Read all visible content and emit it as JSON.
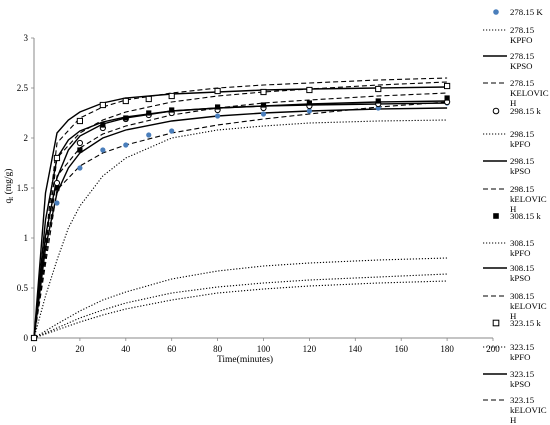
{
  "chart_data": {
    "type": "scatter",
    "xlabel": "Time(minutes)",
    "ylabel": "q",
    "ylabel_sub": "t",
    "ylabel_unit": " (mg/g)",
    "xlim": [
      0,
      200
    ],
    "ylim": [
      0,
      3
    ],
    "xticks": [
      "0",
      "20",
      "40",
      "60",
      "80",
      "100",
      "120",
      "140",
      "160",
      "180",
      "200"
    ],
    "xtick_values": [
      0,
      20,
      40,
      60,
      80,
      100,
      120,
      140,
      160,
      180,
      200
    ],
    "yticks": [
      "0",
      "0.5",
      "1",
      "1.5",
      "2",
      "2.5",
      "3"
    ],
    "ytick_values": [
      0,
      0.5,
      1,
      1.5,
      2,
      2.5,
      3
    ],
    "grid": false,
    "legend_position": "right",
    "series": [
      {
        "name": "278.15 K",
        "kind": "points",
        "marker": "circle-filled",
        "color": "#4a7ebb",
        "x": [
          0,
          10,
          20,
          30,
          40,
          50,
          60,
          80,
          100,
          120,
          150,
          180
        ],
        "y": [
          0,
          1.35,
          1.7,
          1.88,
          1.93,
          2.03,
          2.07,
          2.22,
          2.24,
          2.27,
          2.3,
          2.35
        ]
      },
      {
        "name": "278.15 KPFO",
        "kind": "line",
        "style": "dotted",
        "x": [
          0,
          5,
          10,
          15,
          20,
          30,
          40,
          60,
          80,
          100,
          120,
          150,
          180
        ],
        "y": [
          0,
          0.42,
          0.78,
          1.1,
          1.32,
          1.62,
          1.8,
          2.0,
          2.08,
          2.12,
          2.15,
          2.17,
          2.18
        ]
      },
      {
        "name": "278.15 KPSO",
        "kind": "line",
        "style": "solid",
        "x": [
          0,
          5,
          10,
          15,
          20,
          30,
          40,
          60,
          80,
          100,
          120,
          150,
          180
        ],
        "y": [
          0,
          0.9,
          1.45,
          1.7,
          1.85,
          2.0,
          2.08,
          2.17,
          2.22,
          2.25,
          2.27,
          2.29,
          2.3
        ]
      },
      {
        "name": "278.15 KELOVICH",
        "kind": "line",
        "style": "dashed",
        "x": [
          0,
          10,
          20,
          30,
          40,
          60,
          80,
          100,
          120,
          150,
          180
        ],
        "y": [
          0,
          1.48,
          1.72,
          1.85,
          1.93,
          2.05,
          2.13,
          2.19,
          2.24,
          2.31,
          2.36
        ]
      },
      {
        "name": "298.15 k",
        "kind": "points",
        "marker": "circle-open",
        "color": "#000000",
        "x": [
          0,
          10,
          20,
          30,
          40,
          50,
          60,
          80,
          100,
          120,
          150,
          180
        ],
        "y": [
          0,
          1.55,
          1.95,
          2.1,
          2.19,
          2.23,
          2.25,
          2.28,
          2.3,
          2.32,
          2.34,
          2.36
        ]
      },
      {
        "name": "298.15 kPFO",
        "kind": "line",
        "style": "dotted",
        "x": [
          0,
          10,
          20,
          30,
          40,
          60,
          80,
          100,
          120,
          150,
          180
        ],
        "y": [
          0,
          0.1,
          0.2,
          0.28,
          0.35,
          0.45,
          0.51,
          0.55,
          0.58,
          0.61,
          0.64
        ]
      },
      {
        "name": "298.15 kPSO",
        "kind": "line",
        "style": "solid",
        "x": [
          0,
          5,
          10,
          15,
          20,
          30,
          40,
          60,
          80,
          100,
          120,
          150,
          180
        ],
        "y": [
          0,
          1.02,
          1.6,
          1.88,
          2.02,
          2.14,
          2.2,
          2.27,
          2.3,
          2.32,
          2.33,
          2.34,
          2.35
        ]
      },
      {
        "name": "298.15 kELOVICH",
        "kind": "line",
        "style": "dashed",
        "x": [
          0,
          10,
          20,
          30,
          40,
          60,
          80,
          100,
          120,
          150,
          180
        ],
        "y": [
          0,
          1.62,
          1.9,
          2.04,
          2.12,
          2.23,
          2.3,
          2.35,
          2.38,
          2.42,
          2.45
        ]
      },
      {
        "name": "308.15 k",
        "kind": "points",
        "marker": "square-filled",
        "color": "#000000",
        "x": [
          0,
          10,
          20,
          30,
          40,
          50,
          60,
          80,
          100,
          120,
          150,
          180
        ],
        "y": [
          0,
          1.5,
          1.88,
          2.13,
          2.2,
          2.25,
          2.28,
          2.31,
          2.33,
          2.35,
          2.37,
          2.4
        ]
      },
      {
        "name": "308.15 kPFO",
        "kind": "line",
        "style": "dotted",
        "x": [
          0,
          10,
          20,
          30,
          40,
          60,
          80,
          100,
          120,
          150,
          180
        ],
        "y": [
          0,
          0.14,
          0.27,
          0.38,
          0.46,
          0.59,
          0.67,
          0.72,
          0.75,
          0.78,
          0.8
        ]
      },
      {
        "name": "308.15 kPSO",
        "kind": "line",
        "style": "solid",
        "x": [
          0,
          5,
          10,
          15,
          20,
          30,
          40,
          60,
          80,
          100,
          120,
          150,
          180
        ],
        "y": [
          0,
          1.18,
          1.8,
          1.98,
          2.07,
          2.16,
          2.21,
          2.27,
          2.3,
          2.32,
          2.34,
          2.36,
          2.37
        ]
      },
      {
        "name": "308.15 kELOVICH",
        "kind": "line",
        "style": "dashed",
        "x": [
          0,
          10,
          20,
          30,
          40,
          60,
          80,
          100,
          120,
          150,
          180
        ],
        "y": [
          0,
          1.8,
          2.05,
          2.18,
          2.26,
          2.36,
          2.42,
          2.46,
          2.49,
          2.53,
          2.56
        ]
      },
      {
        "name": "323.15 k",
        "kind": "points",
        "marker": "square-open",
        "color": "#000000",
        "x": [
          0,
          10,
          20,
          30,
          40,
          50,
          60,
          80,
          100,
          120,
          150,
          180
        ],
        "y": [
          0,
          1.8,
          2.17,
          2.33,
          2.37,
          2.39,
          2.42,
          2.47,
          2.46,
          2.48,
          2.49,
          2.52
        ]
      },
      {
        "name": "323.15 kPFO",
        "kind": "line",
        "style": "dotted",
        "x": [
          0,
          10,
          20,
          30,
          40,
          60,
          80,
          100,
          120,
          150,
          180
        ],
        "y": [
          0,
          0.08,
          0.16,
          0.23,
          0.29,
          0.38,
          0.45,
          0.49,
          0.52,
          0.55,
          0.57
        ]
      },
      {
        "name": "323.15 kPSO",
        "kind": "line",
        "style": "solid",
        "x": [
          0,
          5,
          10,
          15,
          20,
          30,
          40,
          60,
          80,
          100,
          120,
          150,
          180
        ],
        "y": [
          0,
          1.45,
          2.05,
          2.18,
          2.26,
          2.35,
          2.4,
          2.44,
          2.46,
          2.48,
          2.49,
          2.5,
          2.51
        ]
      },
      {
        "name": "323.15 kELOVICH",
        "kind": "line",
        "style": "dashed",
        "x": [
          0,
          10,
          20,
          30,
          40,
          60,
          80,
          100,
          120,
          150,
          180
        ],
        "y": [
          0,
          1.95,
          2.2,
          2.31,
          2.38,
          2.45,
          2.5,
          2.53,
          2.55,
          2.58,
          2.6
        ]
      }
    ],
    "legend_lines": [
      [
        "278.15 K"
      ],
      [
        "278.15",
        "KPFO"
      ],
      [
        "278.15",
        "KPSO"
      ],
      [
        "278.15",
        "KELOVIC",
        "H"
      ],
      [
        "298.15 k"
      ],
      [
        "298.15",
        "kPFO"
      ],
      [
        "298.15",
        "kPSO"
      ],
      [
        "298.15",
        "kELOVIC",
        "H"
      ],
      [
        "308.15 k"
      ],
      [
        "308.15",
        "kPFO"
      ],
      [
        "308.15",
        "kPSO"
      ],
      [
        "308.15",
        "kELOVIC",
        "H"
      ],
      [
        "323.15 k"
      ],
      [
        "323.15",
        "kPFO"
      ],
      [
        "323.15",
        "kPSO"
      ],
      [
        "323.15",
        "kELOVIC",
        "H"
      ]
    ]
  }
}
